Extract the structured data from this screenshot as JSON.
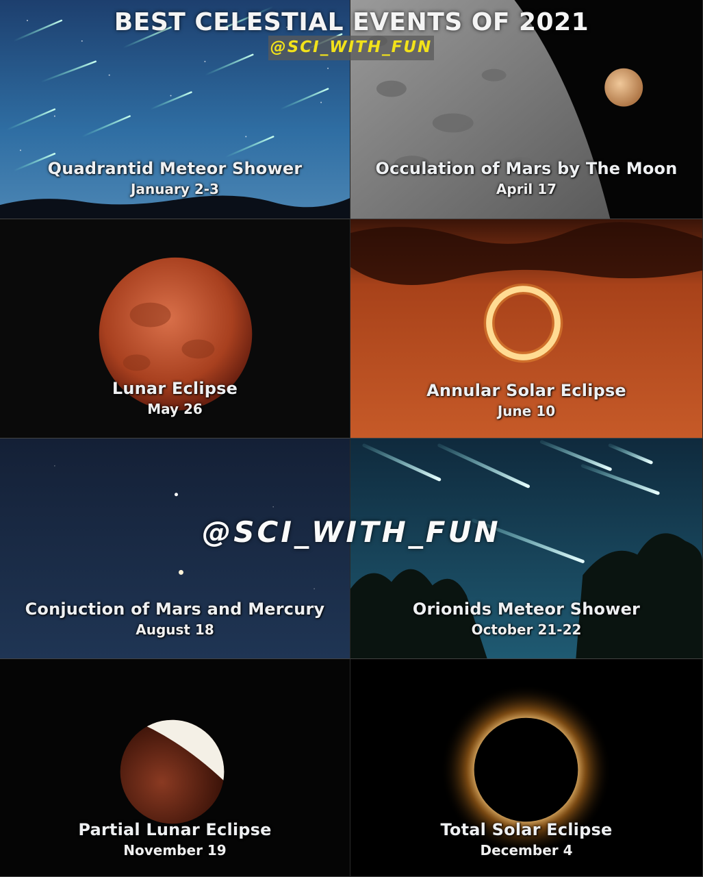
{
  "header": {
    "title": "BEST CELESTIAL EVENTS OF 2021",
    "handle": "@SCI_WITH_FUN"
  },
  "watermark": "@SCI_WITH_FUN",
  "events": [
    {
      "title": "Quadrantid Meteor Shower",
      "date": "January 2-3"
    },
    {
      "title": "Occulation of Mars by The Moon",
      "date": "April 17"
    },
    {
      "title": "Lunar Eclipse",
      "date": "May 26"
    },
    {
      "title": "Annular Solar Eclipse",
      "date": "June 10"
    },
    {
      "title": "Conjuction of Mars and Mercury",
      "date": "August 18"
    },
    {
      "title": "Orionids Meteor Shower",
      "date": "October 21-22"
    },
    {
      "title": "Partial Lunar Eclipse",
      "date": "November 19"
    },
    {
      "title": "Total Solar Eclipse",
      "date": "December 4"
    }
  ],
  "colors": {
    "handle_text": "#f2e21a",
    "caption_text": "#ffffff"
  }
}
